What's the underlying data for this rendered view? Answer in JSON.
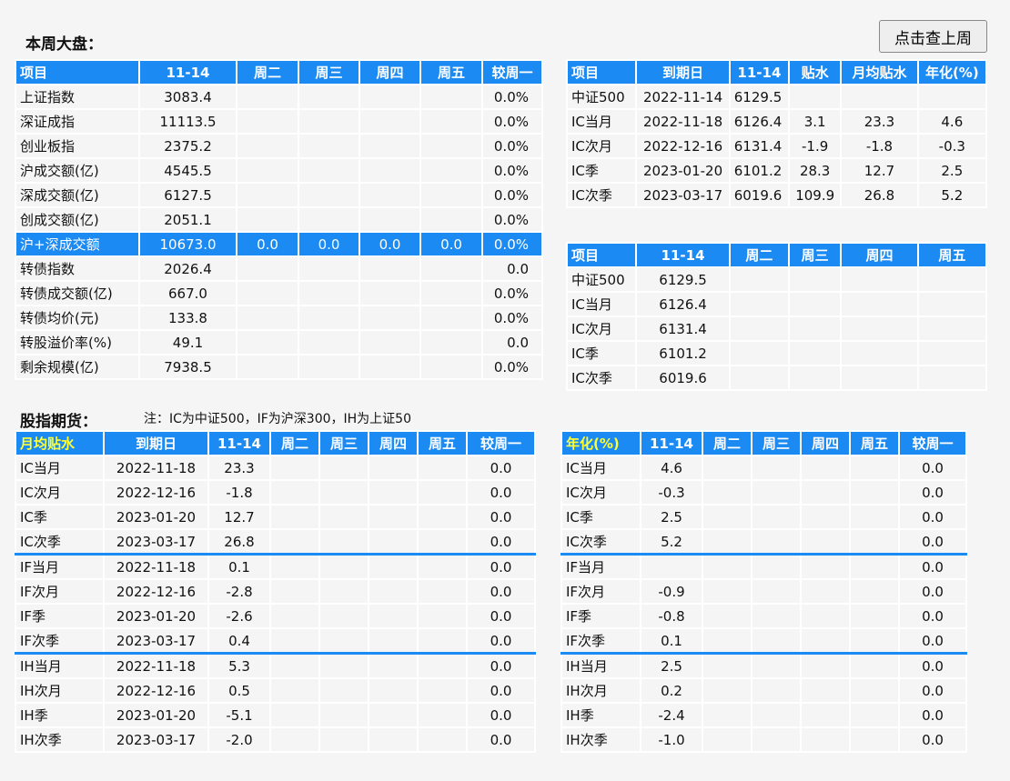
{
  "market": {
    "title": "本周大盘：",
    "prev_week_button": "点击查上周",
    "headers": [
      "项目",
      "11-14",
      "周二",
      "周三",
      "周四",
      "周五",
      "较周一"
    ],
    "rows": [
      [
        "上证指数",
        "3083.4",
        "",
        "",
        "",
        "",
        "0.0%"
      ],
      [
        "深证成指",
        "11113.5",
        "",
        "",
        "",
        "",
        "0.0%"
      ],
      [
        "创业板指",
        "2375.2",
        "",
        "",
        "",
        "",
        "0.0%"
      ],
      [
        "沪成交额(亿)",
        "4545.5",
        "",
        "",
        "",
        "",
        "0.0%"
      ],
      [
        "深成交额(亿)",
        "6127.5",
        "",
        "",
        "",
        "",
        "0.0%"
      ],
      [
        "创成交额(亿)",
        "2051.1",
        "",
        "",
        "",
        "",
        "0.0%"
      ],
      [
        "沪+深成交额",
        "10673.0",
        "0.0",
        "0.0",
        "0.0",
        "0.0",
        "0.0%"
      ],
      [
        "转债指数",
        "2026.4",
        "",
        "",
        "",
        "",
        "0.0"
      ],
      [
        "转债成交额(亿)",
        "667.0",
        "",
        "",
        "",
        "",
        "0.0%"
      ],
      [
        "转债均价(元)",
        "133.8",
        "",
        "",
        "",
        "",
        "0.0%"
      ],
      [
        "转股溢价率(%)",
        "49.1",
        "",
        "",
        "",
        "",
        "0.0"
      ],
      [
        "剩余规模(亿)",
        "7938.5",
        "",
        "",
        "",
        "",
        "0.0%"
      ]
    ]
  },
  "ic_basis": {
    "headers": [
      "项目",
      "到期日",
      "11-14",
      "贴水",
      "月均贴水",
      "年化(%)"
    ],
    "rows": [
      [
        "中证500",
        "2022-11-14",
        "6129.5",
        "",
        "",
        ""
      ],
      [
        "IC当月",
        "2022-11-18",
        "6126.4",
        "3.1",
        "23.3",
        "4.6"
      ],
      [
        "IC次月",
        "2022-12-16",
        "6131.4",
        "-1.9",
        "-1.8",
        "-0.3"
      ],
      [
        "IC季",
        "2023-01-20",
        "6101.2",
        "28.3",
        "12.7",
        "2.5"
      ],
      [
        "IC次季",
        "2023-03-17",
        "6019.6",
        "109.9",
        "26.8",
        "5.2"
      ]
    ]
  },
  "ic_prices": {
    "headers": [
      "项目",
      "11-14",
      "周二",
      "周三",
      "周四",
      "周五"
    ],
    "rows": [
      [
        "中证500",
        "6129.5",
        "",
        "",
        "",
        ""
      ],
      [
        "IC当月",
        "6126.4",
        "",
        "",
        "",
        ""
      ],
      [
        "IC次月",
        "6131.4",
        "",
        "",
        "",
        ""
      ],
      [
        "IC季",
        "6101.2",
        "",
        "",
        "",
        ""
      ],
      [
        "IC次季",
        "6019.6",
        "",
        "",
        "",
        ""
      ]
    ]
  },
  "futures": {
    "title": "股指期货：",
    "note": "注：IC为中证500，IF为沪深300，IH为上证50",
    "header_highlight_color": "#ffff33",
    "accent_color": "#1b8af3"
  },
  "monthly_discount": {
    "headers": [
      "月均贴水",
      "到期日",
      "11-14",
      "周二",
      "周三",
      "周四",
      "周五",
      "较周一"
    ],
    "rows": [
      [
        "IC当月",
        "2022-11-18",
        "23.3",
        "",
        "",
        "",
        "",
        "0.0"
      ],
      [
        "IC次月",
        "2022-12-16",
        "-1.8",
        "",
        "",
        "",
        "",
        "0.0"
      ],
      [
        "IC季",
        "2023-01-20",
        "12.7",
        "",
        "",
        "",
        "",
        "0.0"
      ],
      [
        "IC次季",
        "2023-03-17",
        "26.8",
        "",
        "",
        "",
        "",
        "0.0"
      ],
      [
        "IF当月",
        "2022-11-18",
        "0.1",
        "",
        "",
        "",
        "",
        "0.0"
      ],
      [
        "IF次月",
        "2022-12-16",
        "-2.8",
        "",
        "",
        "",
        "",
        "0.0"
      ],
      [
        "IF季",
        "2023-01-20",
        "-2.6",
        "",
        "",
        "",
        "",
        "0.0"
      ],
      [
        "IF次季",
        "2023-03-17",
        "0.4",
        "",
        "",
        "",
        "",
        "0.0"
      ],
      [
        "IH当月",
        "2022-11-18",
        "5.3",
        "",
        "",
        "",
        "",
        "0.0"
      ],
      [
        "IH次月",
        "2022-12-16",
        "0.5",
        "",
        "",
        "",
        "",
        "0.0"
      ],
      [
        "IH季",
        "2023-01-20",
        "-5.1",
        "",
        "",
        "",
        "",
        "0.0"
      ],
      [
        "IH次季",
        "2023-03-17",
        "-2.0",
        "",
        "",
        "",
        "",
        "0.0"
      ]
    ]
  },
  "annualized": {
    "headers": [
      "年化(%)",
      "11-14",
      "周二",
      "周三",
      "周四",
      "周五",
      "较周一"
    ],
    "rows": [
      [
        "IC当月",
        "4.6",
        "",
        "",
        "",
        "",
        "0.0"
      ],
      [
        "IC次月",
        "-0.3",
        "",
        "",
        "",
        "",
        "0.0"
      ],
      [
        "IC季",
        "2.5",
        "",
        "",
        "",
        "",
        "0.0"
      ],
      [
        "IC次季",
        "5.2",
        "",
        "",
        "",
        "",
        "0.0"
      ],
      [
        "IF当月",
        "",
        "",
        "",
        "",
        "",
        "0.0"
      ],
      [
        "IF次月",
        "-0.9",
        "",
        "",
        "",
        "",
        "0.0"
      ],
      [
        "IF季",
        "-0.8",
        "",
        "",
        "",
        "",
        "0.0"
      ],
      [
        "IF次季",
        "0.1",
        "",
        "",
        "",
        "",
        "0.0"
      ],
      [
        "IH当月",
        "2.5",
        "",
        "",
        "",
        "",
        "0.0"
      ],
      [
        "IH次月",
        "0.2",
        "",
        "",
        "",
        "",
        "0.0"
      ],
      [
        "IH季",
        "-2.4",
        "",
        "",
        "",
        "",
        "0.0"
      ],
      [
        "IH次季",
        "-1.0",
        "",
        "",
        "",
        "",
        "0.0"
      ]
    ]
  }
}
